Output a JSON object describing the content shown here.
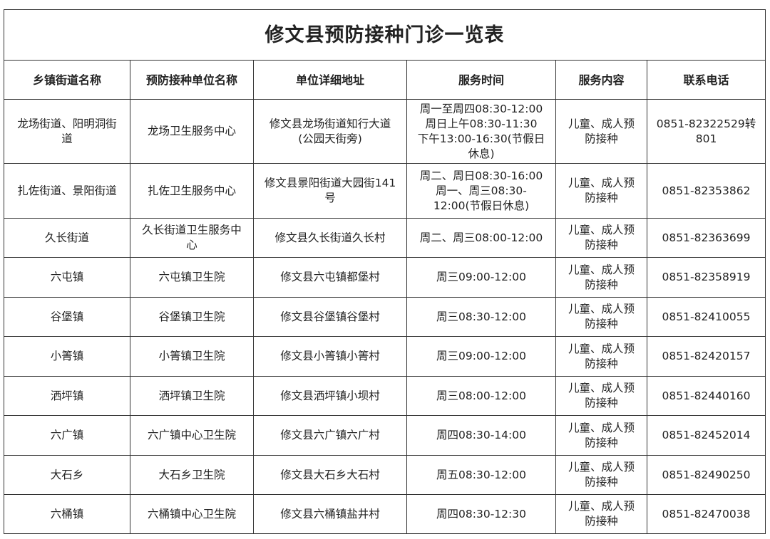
{
  "title": "修文县预防接种门诊一览表",
  "headers": [
    "乡镇街道名称",
    "预防接种单位名称",
    "单位详细地址",
    "服务时间",
    "服务内容",
    "联系电话"
  ],
  "rows": [
    [
      "龙场街道、阳明洞街\n道",
      "龙场卫生服务中心",
      "修文县龙场街道知行大道\n(公园天街旁)",
      "周一至周四08:30-12:00\n周日上午08:30-11:30\n下午13:00-16:30(节假日\n休息)",
      "儿童、成人预\n防接种",
      "0851-82322529转\n801"
    ],
    [
      "扎佐街道、景阳街道",
      "扎佐卫生服务中心",
      "修文县景阳街道大园街141\n号",
      "周二、周日08:30-16:00\n周一、周三08:30-\n12:00(节假日休息)",
      "儿童、成人预\n防接种",
      "0851-82353862"
    ],
    [
      "久长街道",
      "久长街道卫生服务中\n心",
      "修文县久长街道久长村",
      "周二、周三08:00-12:00",
      "儿童、成人预\n防接种",
      "0851-82363699"
    ],
    [
      "六屯镇",
      "六屯镇卫生院",
      "修文县六屯镇都堡村",
      "周三09:00-12:00",
      "儿童、成人预\n防接种",
      "0851-82358919"
    ],
    [
      "谷堡镇",
      "谷堡镇卫生院",
      "修文县谷堡镇谷堡村",
      "周三08:30-12:00",
      "儿童、成人预\n防接种",
      "0851-82410055"
    ],
    [
      "小箐镇",
      "小箐镇卫生院",
      "修文县小箐镇小箐村",
      "周三09:00-12:00",
      "儿童、成人预\n防接种",
      "0851-82420157"
    ],
    [
      "洒坪镇",
      "洒坪镇卫生院",
      "修文县洒坪镇小坝村",
      "周三08:00-12:00",
      "儿童、成人预\n防接种",
      "0851-82440160"
    ],
    [
      "六广镇",
      "六广镇中心卫生院",
      "修文县六广镇六广村",
      "周四08:30-14:00",
      "儿童、成人预\n防接种",
      "0851-82452014"
    ],
    [
      "大石乡",
      "大石乡卫生院",
      "修文县大石乡大石村",
      "周五08:30-12:00",
      "儿童、成人预\n防接种",
      "0851-82490250"
    ],
    [
      "六桶镇",
      "六桶镇中心卫生院",
      "修文县六桶镇盐井村",
      "周四08:30-12:30",
      "儿童、成人预\n防接种",
      "0851-82470038"
    ]
  ]
}
